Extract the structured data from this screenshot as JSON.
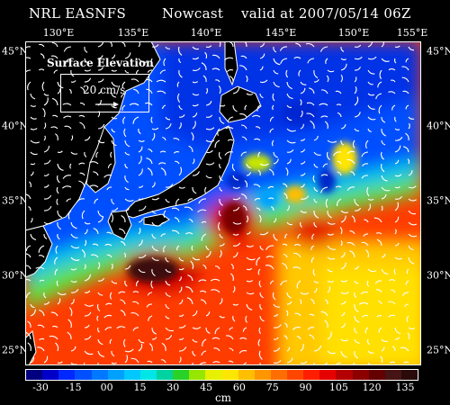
{
  "header": {
    "left": "NRL EASNFS",
    "middle": "Nowcast",
    "right": "valid at 2007/05/14 06Z"
  },
  "map": {
    "longitude_labels": [
      "130°E",
      "135°E",
      "140°E",
      "145°E",
      "150°E",
      "155°E"
    ],
    "latitude_labels": [
      "45°N",
      "40°N",
      "35°N",
      "30°N",
      "25°N"
    ],
    "legend_title": "Surface Elevation",
    "legend_vector": "20 cm/s"
  },
  "colorbar": {
    "unit": "cm",
    "tick_labels": [
      "-30",
      "-15",
      "00",
      "15",
      "30",
      "45",
      "60",
      "75",
      "90",
      "105",
      "120",
      "135"
    ],
    "colors": [
      "#000080",
      "#0000c8",
      "#0028ff",
      "#0050ff",
      "#0078ff",
      "#00a0ff",
      "#00c8ff",
      "#00e6e6",
      "#00d2a0",
      "#28d228",
      "#96e600",
      "#e6f000",
      "#ffe600",
      "#ffbe00",
      "#ff9600",
      "#ff6e00",
      "#ff4600",
      "#ff1e00",
      "#e60000",
      "#b40000",
      "#8c0000",
      "#640000",
      "#461414",
      "#2a0a0a"
    ]
  }
}
